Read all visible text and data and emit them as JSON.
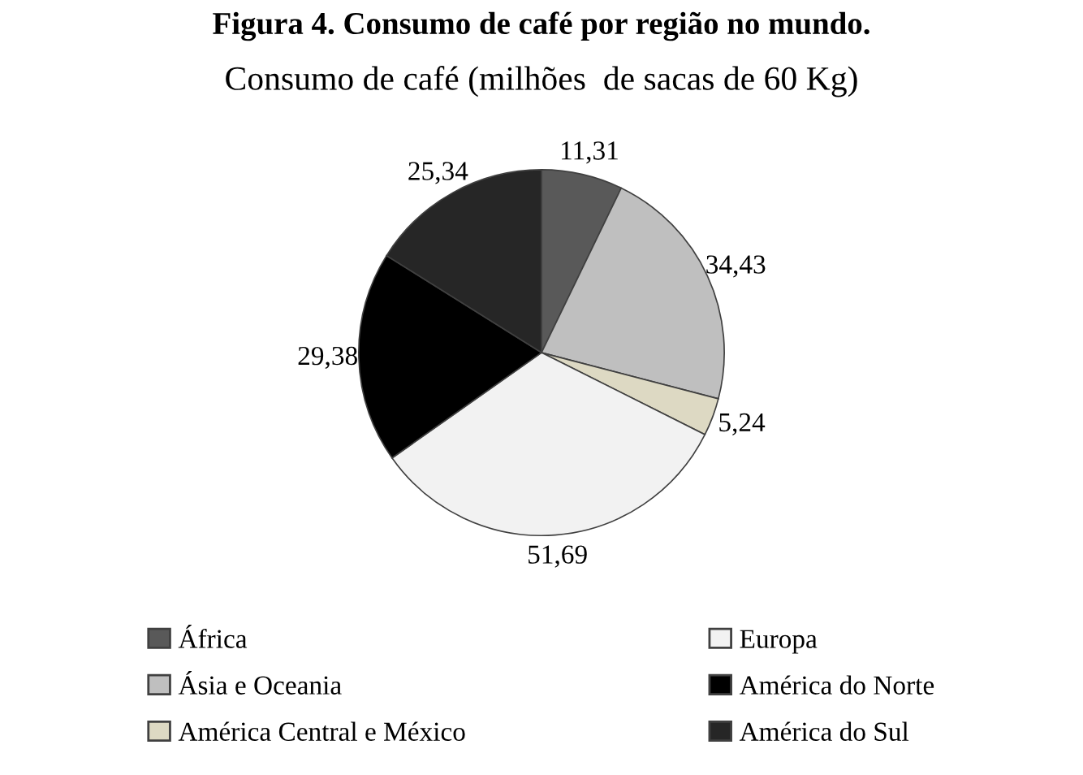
{
  "chart_data": {
    "type": "pie",
    "title": "Consumo de café (milhões  de sacas de 60 Kg)",
    "annotations": [
      "Figura 4. Consumo de café por região no mundo."
    ],
    "categories": [
      "África",
      "Ásia e Oceania",
      "América Central e México",
      "Europa",
      "América do Norte",
      "América do Sul"
    ],
    "values": [
      11.31,
      34.43,
      5.24,
      51.69,
      29.38,
      25.34
    ],
    "value_labels": [
      "11,31",
      "34,43",
      "5,24",
      "51,69",
      "29,38",
      "25,34"
    ],
    "colors": [
      "#595959",
      "#bfbfbf",
      "#ddd9c3",
      "#f2f2f2",
      "#000000",
      "#262626"
    ],
    "legend": "bottom"
  }
}
